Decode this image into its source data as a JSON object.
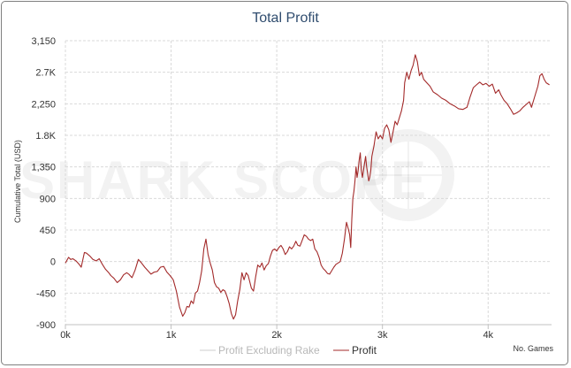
{
  "chart_data": {
    "type": "line",
    "title": "Total Profit",
    "xlabel": "No. Games",
    "ylabel": "Cumulative Total (USD)",
    "xlim": [
      0,
      4600
    ],
    "ylim": [
      -900,
      3150
    ],
    "x_ticks": [
      {
        "value": 0,
        "label": "0k"
      },
      {
        "value": 1000,
        "label": "1k"
      },
      {
        "value": 2000,
        "label": "2k"
      },
      {
        "value": 3000,
        "label": "3k"
      },
      {
        "value": 4000,
        "label": "4k"
      }
    ],
    "y_ticks": [
      {
        "value": 3150,
        "label": "3,150"
      },
      {
        "value": 2700,
        "label": "2.7K"
      },
      {
        "value": 2250,
        "label": "2,250"
      },
      {
        "value": 1800,
        "label": "1.8K"
      },
      {
        "value": 1350,
        "label": "1,350"
      },
      {
        "value": 900,
        "label": "900"
      },
      {
        "value": 450,
        "label": "450"
      },
      {
        "value": 0,
        "label": "0"
      },
      {
        "value": -450,
        "label": "-450"
      },
      {
        "value": -900,
        "label": "-900"
      }
    ],
    "grid": true,
    "legend_position": "bottom-center",
    "watermark": "SHARK SCOPE",
    "series": [
      {
        "name": "Profit Excluding Rake",
        "color": "#cccccc",
        "points": []
      },
      {
        "name": "Profit",
        "color": "#a32a2a",
        "points": [
          [
            0,
            -20
          ],
          [
            30,
            60
          ],
          [
            50,
            30
          ],
          [
            70,
            40
          ],
          [
            100,
            10
          ],
          [
            130,
            -40
          ],
          [
            150,
            -80
          ],
          [
            180,
            130
          ],
          [
            200,
            120
          ],
          [
            230,
            80
          ],
          [
            260,
            30
          ],
          [
            290,
            10
          ],
          [
            320,
            40
          ],
          [
            350,
            -40
          ],
          [
            380,
            -110
          ],
          [
            410,
            -160
          ],
          [
            430,
            -200
          ],
          [
            460,
            -240
          ],
          [
            490,
            -300
          ],
          [
            520,
            -260
          ],
          [
            550,
            -190
          ],
          [
            580,
            -160
          ],
          [
            600,
            -180
          ],
          [
            630,
            -230
          ],
          [
            660,
            -120
          ],
          [
            690,
            30
          ],
          [
            720,
            -20
          ],
          [
            750,
            -80
          ],
          [
            780,
            -130
          ],
          [
            810,
            -180
          ],
          [
            840,
            -150
          ],
          [
            870,
            -140
          ],
          [
            900,
            -80
          ],
          [
            930,
            -70
          ],
          [
            960,
            -150
          ],
          [
            990,
            -200
          ],
          [
            1020,
            -260
          ],
          [
            1050,
            -420
          ],
          [
            1080,
            -650
          ],
          [
            1110,
            -780
          ],
          [
            1130,
            -730
          ],
          [
            1150,
            -640
          ],
          [
            1170,
            -650
          ],
          [
            1190,
            -560
          ],
          [
            1210,
            -600
          ],
          [
            1230,
            -450
          ],
          [
            1250,
            -420
          ],
          [
            1270,
            -300
          ],
          [
            1290,
            -130
          ],
          [
            1310,
            180
          ],
          [
            1330,
            320
          ],
          [
            1350,
            100
          ],
          [
            1370,
            -20
          ],
          [
            1390,
            -120
          ],
          [
            1410,
            -300
          ],
          [
            1430,
            -360
          ],
          [
            1450,
            -380
          ],
          [
            1470,
            -440
          ],
          [
            1490,
            -400
          ],
          [
            1510,
            -420
          ],
          [
            1530,
            -500
          ],
          [
            1550,
            -600
          ],
          [
            1570,
            -740
          ],
          [
            1590,
            -820
          ],
          [
            1610,
            -760
          ],
          [
            1630,
            -560
          ],
          [
            1650,
            -400
          ],
          [
            1670,
            -160
          ],
          [
            1690,
            -260
          ],
          [
            1710,
            -160
          ],
          [
            1730,
            -200
          ],
          [
            1760,
            -380
          ],
          [
            1780,
            -420
          ],
          [
            1800,
            -220
          ],
          [
            1820,
            -50
          ],
          [
            1840,
            -80
          ],
          [
            1860,
            -20
          ],
          [
            1880,
            -120
          ],
          [
            1900,
            -60
          ],
          [
            1920,
            -30
          ],
          [
            1940,
            80
          ],
          [
            1960,
            160
          ],
          [
            1980,
            180
          ],
          [
            2000,
            150
          ],
          [
            2020,
            200
          ],
          [
            2040,
            230
          ],
          [
            2060,
            180
          ],
          [
            2080,
            100
          ],
          [
            2100,
            140
          ],
          [
            2120,
            210
          ],
          [
            2140,
            180
          ],
          [
            2160,
            220
          ],
          [
            2180,
            290
          ],
          [
            2200,
            230
          ],
          [
            2220,
            220
          ],
          [
            2240,
            300
          ],
          [
            2260,
            380
          ],
          [
            2280,
            360
          ],
          [
            2300,
            320
          ],
          [
            2320,
            300
          ],
          [
            2340,
            320
          ],
          [
            2360,
            180
          ],
          [
            2380,
            140
          ],
          [
            2400,
            60
          ],
          [
            2420,
            -50
          ],
          [
            2440,
            -100
          ],
          [
            2460,
            -130
          ],
          [
            2480,
            -170
          ],
          [
            2500,
            -180
          ],
          [
            2520,
            -130
          ],
          [
            2540,
            -80
          ],
          [
            2560,
            -40
          ],
          [
            2580,
            -20
          ],
          [
            2600,
            0
          ],
          [
            2620,
            120
          ],
          [
            2640,
            320
          ],
          [
            2660,
            560
          ],
          [
            2680,
            450
          ],
          [
            2690,
            380
          ],
          [
            2700,
            200
          ],
          [
            2710,
            600
          ],
          [
            2720,
            900
          ],
          [
            2730,
            1000
          ],
          [
            2740,
            1150
          ],
          [
            2750,
            1350
          ],
          [
            2760,
            1200
          ],
          [
            2770,
            1300
          ],
          [
            2780,
            1450
          ],
          [
            2790,
            1550
          ],
          [
            2800,
            1300
          ],
          [
            2810,
            1200
          ],
          [
            2820,
            1300
          ],
          [
            2830,
            1400
          ],
          [
            2840,
            1500
          ],
          [
            2850,
            1350
          ],
          [
            2860,
            1250
          ],
          [
            2870,
            1150
          ],
          [
            2880,
            1200
          ],
          [
            2890,
            1300
          ],
          [
            2900,
            1500
          ],
          [
            2920,
            1650
          ],
          [
            2940,
            1850
          ],
          [
            2960,
            1750
          ],
          [
            2980,
            1800
          ],
          [
            3000,
            1750
          ],
          [
            3020,
            1900
          ],
          [
            3040,
            1950
          ],
          [
            3060,
            1880
          ],
          [
            3080,
            1700
          ],
          [
            3100,
            1850
          ],
          [
            3120,
            2000
          ],
          [
            3140,
            1950
          ],
          [
            3160,
            2050
          ],
          [
            3180,
            2150
          ],
          [
            3200,
            2300
          ],
          [
            3210,
            2550
          ],
          [
            3230,
            2700
          ],
          [
            3250,
            2600
          ],
          [
            3270,
            2720
          ],
          [
            3290,
            2800
          ],
          [
            3310,
            2950
          ],
          [
            3330,
            2850
          ],
          [
            3350,
            2650
          ],
          [
            3370,
            2700
          ],
          [
            3390,
            2600
          ],
          [
            3420,
            2550
          ],
          [
            3450,
            2500
          ],
          [
            3480,
            2420
          ],
          [
            3520,
            2380
          ],
          [
            3560,
            2330
          ],
          [
            3600,
            2300
          ],
          [
            3640,
            2250
          ],
          [
            3680,
            2220
          ],
          [
            3720,
            2180
          ],
          [
            3760,
            2170
          ],
          [
            3800,
            2200
          ],
          [
            3830,
            2350
          ],
          [
            3860,
            2480
          ],
          [
            3890,
            2520
          ],
          [
            3920,
            2560
          ],
          [
            3950,
            2520
          ],
          [
            3980,
            2540
          ],
          [
            4010,
            2500
          ],
          [
            4040,
            2530
          ],
          [
            4070,
            2400
          ],
          [
            4100,
            2450
          ],
          [
            4120,
            2380
          ],
          [
            4150,
            2300
          ],
          [
            4180,
            2250
          ],
          [
            4210,
            2180
          ],
          [
            4240,
            2100
          ],
          [
            4270,
            2120
          ],
          [
            4300,
            2150
          ],
          [
            4330,
            2200
          ],
          [
            4360,
            2240
          ],
          [
            4390,
            2280
          ],
          [
            4410,
            2200
          ],
          [
            4430,
            2300
          ],
          [
            4450,
            2400
          ],
          [
            4470,
            2500
          ],
          [
            4490,
            2650
          ],
          [
            4510,
            2680
          ],
          [
            4530,
            2600
          ],
          [
            4550,
            2550
          ],
          [
            4580,
            2520
          ]
        ]
      }
    ]
  }
}
